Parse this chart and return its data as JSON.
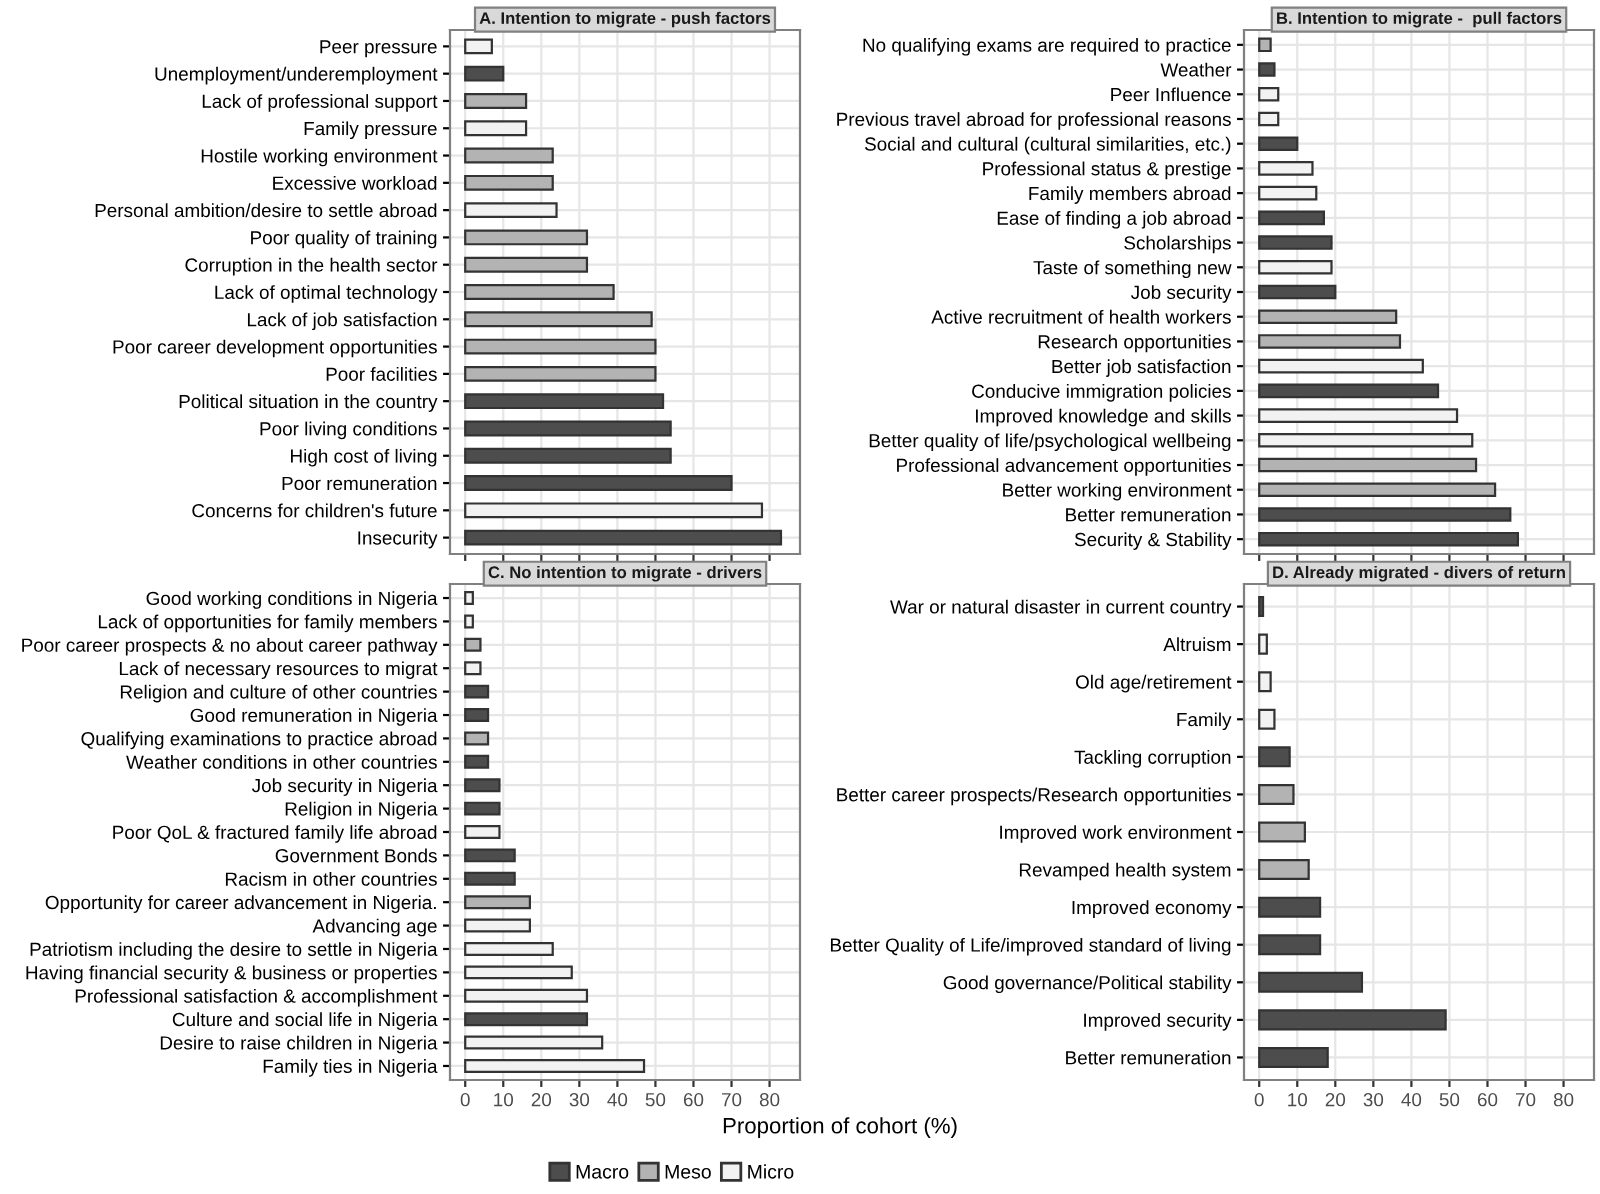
{
  "chart_data": [
    {
      "type": "bar",
      "orientation": "horizontal",
      "title": "A. Intention to migrate - push factors",
      "tick_labels": "y",
      "legend": "bottom",
      "grid": true,
      "xlim": [
        -4,
        88
      ],
      "xticks": [
        0,
        10,
        20,
        30,
        40,
        50,
        60,
        70,
        80
      ],
      "categories": [
        "Peer pressure",
        "Unemployment/underemployment",
        "Lack of professional support",
        "Family pressure",
        "Hostile working environment",
        "Excessive workload",
        "Personal ambition/desire to settle abroad",
        "Poor quality of training",
        "Corruption in the health sector",
        "Lack of optimal technology",
        "Lack of job satisfaction",
        "Poor career development opportunities",
        "Poor facilities",
        "Political situation in the country",
        "Poor living conditions",
        "High cost of living",
        "Poor remuneration",
        "Concerns for children's future",
        "Insecurity"
      ],
      "series": [
        {
          "name": "Macro",
          "color": "#4d4d4d",
          "values": [
            null,
            10,
            null,
            null,
            null,
            null,
            null,
            null,
            null,
            null,
            null,
            null,
            null,
            52,
            54,
            54,
            70,
            null,
            83
          ]
        },
        {
          "name": "Meso",
          "color": "#b3b3b3",
          "values": [
            null,
            null,
            16,
            null,
            23,
            23,
            null,
            32,
            32,
            39,
            49,
            50,
            50,
            null,
            null,
            null,
            null,
            null,
            null
          ]
        },
        {
          "name": "Micro",
          "color": "#f2f2f2",
          "values": [
            7,
            null,
            null,
            16,
            null,
            null,
            24,
            null,
            null,
            null,
            null,
            null,
            null,
            null,
            null,
            null,
            null,
            78,
            null
          ]
        }
      ]
    },
    {
      "type": "bar",
      "orientation": "horizontal",
      "title": "B. Intention to migrate -  pull factors",
      "tick_labels": "y",
      "grid": true,
      "xlim": [
        -4,
        88
      ],
      "xticks": [
        0,
        10,
        20,
        30,
        40,
        50,
        60,
        70,
        80
      ],
      "categories": [
        "No qualifying exams are required to practice",
        "Weather",
        "Peer Influence",
        "Previous travel abroad for professional reasons",
        "Social and cultural (cultural similarities, etc.)",
        "Professional status & prestige",
        "Family members abroad",
        "Ease of finding a job abroad",
        "Scholarships",
        "Taste of something new",
        "Job security",
        "Active recruitment of health workers",
        "Research opportunities",
        "Better job satisfaction",
        "Conducive immigration policies",
        "Improved knowledge and skills",
        "Better quality of life/psychological wellbeing",
        "Professional advancement opportunities",
        "Better working environment",
        "Better remuneration",
        "Security & Stability"
      ],
      "series": [
        {
          "color": "#4d4d4d",
          "values": [
            null,
            4,
            null,
            null,
            10,
            null,
            null,
            17,
            19,
            null,
            20,
            null,
            null,
            null,
            47,
            null,
            null,
            null,
            null,
            66,
            68
          ]
        },
        {
          "color": "#b3b3b3",
          "values": [
            3,
            null,
            null,
            null,
            null,
            null,
            null,
            null,
            null,
            null,
            null,
            36,
            37,
            null,
            null,
            null,
            null,
            57,
            62,
            null,
            null
          ]
        },
        {
          "color": "#f2f2f2",
          "values": [
            null,
            null,
            5,
            5,
            null,
            14,
            15,
            null,
            null,
            19,
            null,
            null,
            null,
            43,
            null,
            52,
            56,
            null,
            null,
            null,
            null
          ]
        }
      ]
    },
    {
      "type": "bar",
      "orientation": "horizontal",
      "title": "C. No intention to migrate - drivers",
      "grid": true,
      "xlim": [
        -4,
        88
      ],
      "xticks": [
        0,
        10,
        20,
        30,
        40,
        50,
        60,
        70,
        80
      ],
      "categories": [
        "Good working conditions in Nigeria",
        "Lack of opportunities for family members",
        "Poor career prospects & no about career pathway",
        "Lack of necessary resources to migrat",
        "Religion and culture of other countries",
        "Good remuneration in Nigeria",
        "Qualifying examinations to practice abroad",
        "Weather conditions in other countries",
        "Job security in Nigeria",
        "Religion in Nigeria",
        "Poor QoL & fractured family life abroad",
        "Government Bonds",
        "Racism in other countries",
        "Opportunity for career advancement in Nigeria.",
        "Advancing age",
        "Patriotism including the desire to settle in Nigeria",
        "Having financial security & business or properties",
        "Professional satisfaction & accomplishment",
        "Culture and social life in Nigeria",
        "Desire to raise children in Nigeria",
        "Family ties in Nigeria"
      ],
      "series": [
        {
          "color": "#4d4d4d",
          "values": [
            null,
            null,
            null,
            null,
            6,
            6,
            null,
            6,
            9,
            9,
            null,
            13,
            13,
            null,
            null,
            null,
            null,
            null,
            32,
            null,
            null
          ]
        },
        {
          "color": "#b3b3b3",
          "values": [
            null,
            null,
            4,
            null,
            null,
            null,
            6,
            null,
            null,
            null,
            null,
            null,
            null,
            17,
            null,
            null,
            null,
            null,
            null,
            null,
            null
          ]
        },
        {
          "color": "#f2f2f2",
          "values": [
            2,
            2,
            null,
            4,
            null,
            null,
            null,
            null,
            null,
            null,
            9,
            null,
            null,
            null,
            17,
            23,
            28,
            32,
            null,
            36,
            47
          ]
        }
      ]
    },
    {
      "type": "bar",
      "orientation": "horizontal",
      "title": "D. Already migrated - divers of return",
      "xlabel": "Proportion of cohort (%)",
      "grid": true,
      "xlim": [
        -4,
        88
      ],
      "xticks": [
        0,
        10,
        20,
        30,
        40,
        50,
        60,
        70,
        80
      ],
      "categories": [
        "War or natural disaster in current country",
        "Altruism",
        "Old age/retirement",
        "Family",
        "Tackling corruption",
        "Better career prospects/Research opportunities",
        "Improved work environment",
        "Revamped health system",
        "Improved economy",
        "Better Quality of Life/improved standard of living",
        "Good governance/Political stability",
        "Improved security",
        "Better remuneration"
      ],
      "series": [
        {
          "color": "#4d4d4d",
          "values": [
            1,
            null,
            null,
            null,
            8,
            null,
            null,
            null,
            16,
            16,
            27,
            49,
            18
          ]
        },
        {
          "color": "#b3b3b3",
          "values": [
            null,
            null,
            null,
            null,
            null,
            9,
            12,
            13,
            null,
            null,
            null,
            null,
            null
          ]
        },
        {
          "color": "#f2f2f2",
          "values": [
            null,
            2,
            3,
            4,
            null,
            null,
            null,
            null,
            null,
            null,
            null,
            null,
            null
          ]
        }
      ]
    }
  ]
}
